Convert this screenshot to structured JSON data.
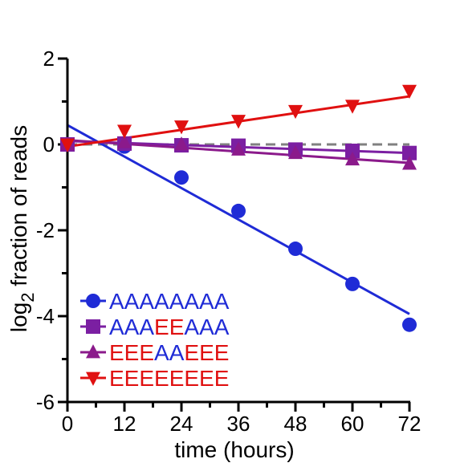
{
  "chart_data": {
    "type": "scatter",
    "title": "",
    "xlabel": "time (hours)",
    "ylabel_main": "log",
    "ylabel_sub": "2",
    "ylabel_rest": " fraction of reads",
    "xlim": [
      0,
      72
    ],
    "ylim": [
      -6,
      2
    ],
    "xticks": [
      "0",
      "12",
      "24",
      "36",
      "48",
      "60",
      "72"
    ],
    "yticks": [
      "2",
      "0",
      "-2",
      "-4",
      "-6"
    ],
    "xtick_values": [
      0,
      12,
      24,
      36,
      48,
      60,
      72
    ],
    "ytick_values": [
      2,
      0,
      -2,
      -4,
      -6
    ],
    "grid": false,
    "legend_placement": "bottom-left",
    "reference_line": {
      "y": 0,
      "style": "dashed",
      "color": "#808080"
    },
    "colors": {
      "A": "#1f2bd6",
      "E": "#e01010"
    },
    "series": [
      {
        "name": "AAAAAAAA",
        "marker": "circle",
        "color": "#1f2bd6",
        "name_segments": [
          {
            "text": "AAAAAAAA",
            "color": "#1f2bd6"
          }
        ],
        "x": [
          0,
          12,
          24,
          36,
          48,
          60,
          72
        ],
        "y": [
          0.0,
          -0.05,
          -0.77,
          -1.55,
          -2.43,
          -3.25,
          -4.2
        ],
        "fit": {
          "x": [
            0,
            72
          ],
          "y": [
            0.45,
            -3.95
          ]
        }
      },
      {
        "name": "AAAEEAAA",
        "marker": "square",
        "color": "#7b1fa2",
        "name_segments": [
          {
            "text": "AAA",
            "color": "#1f2bd6"
          },
          {
            "text": "EE",
            "color": "#e01010"
          },
          {
            "text": "AAA",
            "color": "#1f2bd6"
          }
        ],
        "x": [
          0,
          12,
          24,
          36,
          48,
          60,
          72
        ],
        "y": [
          0.0,
          0.02,
          -0.02,
          -0.03,
          -0.12,
          -0.15,
          -0.2
        ],
        "fit": {
          "x": [
            0,
            72
          ],
          "y": [
            0.08,
            -0.2
          ]
        }
      },
      {
        "name": "EEEAAEEE",
        "marker": "triangle-up",
        "color": "#8b1a8b",
        "name_segments": [
          {
            "text": "EEE",
            "color": "#e01010"
          },
          {
            "text": "AA",
            "color": "#1f2bd6"
          },
          {
            "text": "EEE",
            "color": "#e01010"
          }
        ],
        "x": [
          0,
          12,
          24,
          36,
          48,
          60,
          72
        ],
        "y": [
          0.0,
          0.05,
          0.0,
          -0.12,
          -0.2,
          -0.35,
          -0.45
        ],
        "fit": {
          "x": [
            0,
            72
          ],
          "y": [
            0.1,
            -0.43
          ]
        }
      },
      {
        "name": "EEEEEEEE",
        "marker": "triangle-down",
        "color": "#e01010",
        "name_segments": [
          {
            "text": "EEEEEEEE",
            "color": "#e01010"
          }
        ],
        "x": [
          0,
          12,
          24,
          36,
          48,
          60,
          72
        ],
        "y": [
          0.0,
          0.32,
          0.42,
          0.55,
          0.78,
          0.9,
          1.25
        ],
        "fit": {
          "x": [
            0,
            72
          ],
          "y": [
            -0.05,
            1.12
          ]
        }
      }
    ]
  }
}
